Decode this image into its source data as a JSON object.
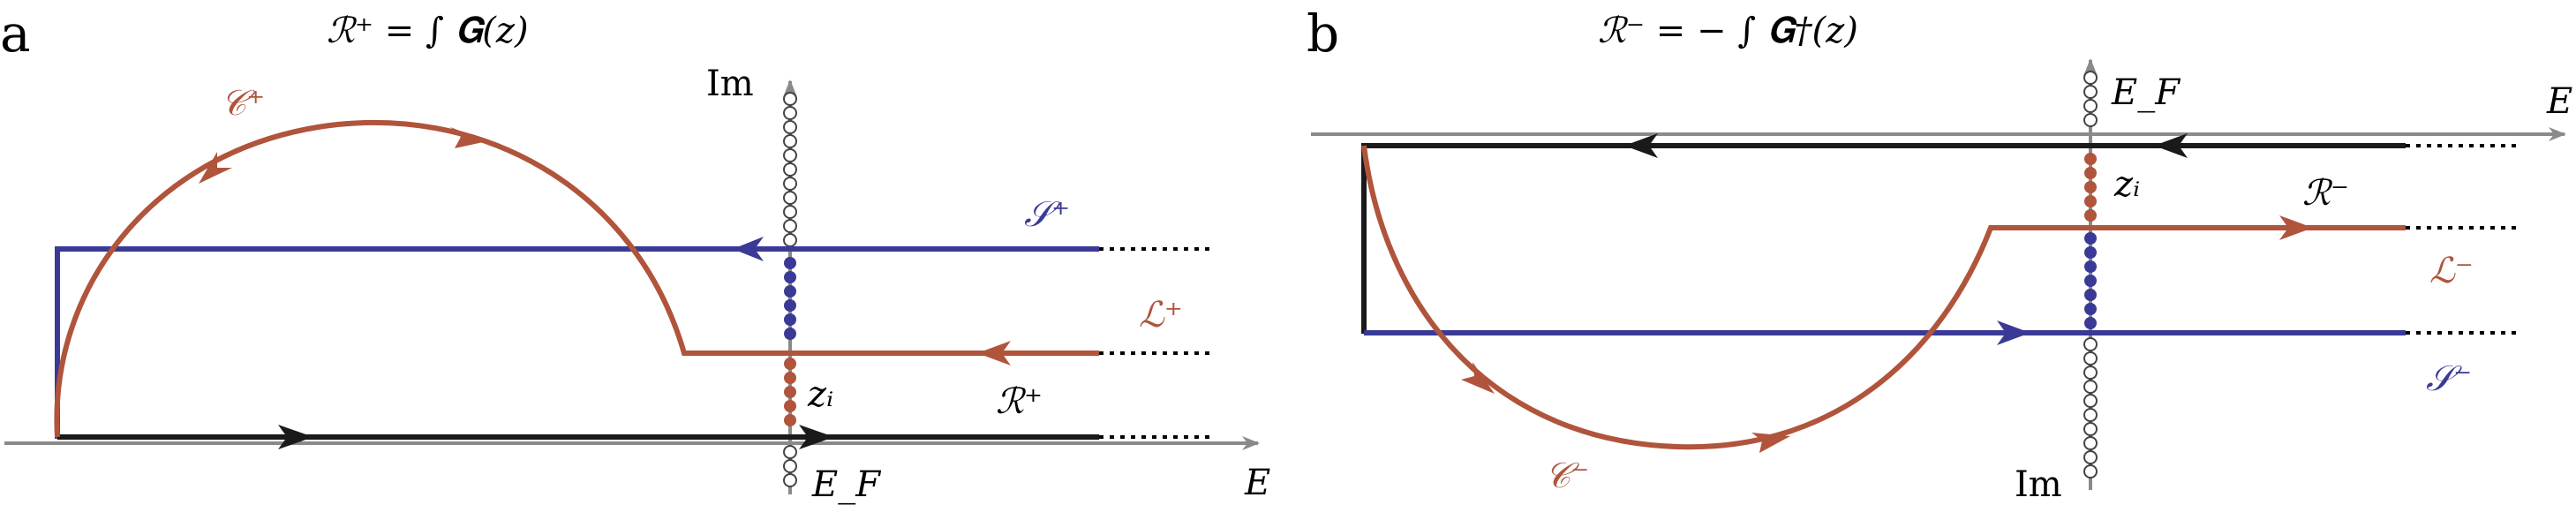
{
  "panels": {
    "a": {
      "letter": "a",
      "title": "ℛ⁺ = ∫ 𝐆(z)",
      "axis_real": "E",
      "axis_imag": "Im",
      "fermi": "E_F",
      "labels": {
        "C": "𝒞⁺",
        "S": "𝒮⁺",
        "L": "ℒ⁺",
        "R": "ℛ⁺",
        "z": "zᵢ"
      }
    },
    "b": {
      "letter": "b",
      "title": "ℛ⁻ = − ∫ 𝐆†(z)",
      "axis_real": "E",
      "axis_imag": "Im",
      "fermi": "E_F",
      "labels": {
        "C": "𝒞⁻",
        "S": "𝒮⁻",
        "L": "ℒ⁻",
        "R": "ℛ⁻",
        "z": "zᵢ"
      }
    }
  },
  "colors": {
    "blue": "#3a3a96",
    "red": "#b0543c",
    "black": "#1a1a1a",
    "axis": "#8a8a8a"
  }
}
